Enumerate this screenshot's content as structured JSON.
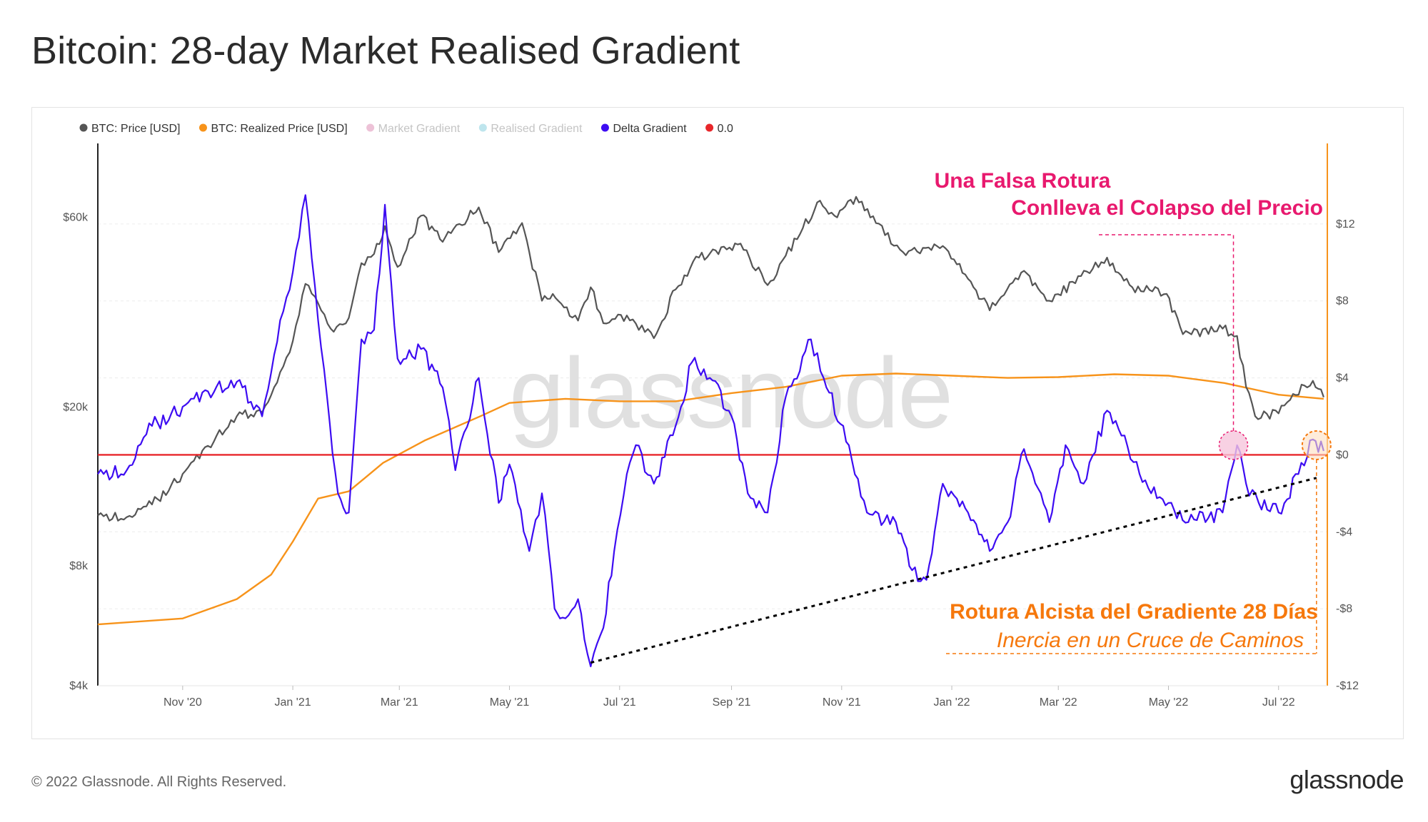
{
  "title": "Bitcoin: 28-day Market Realised Gradient",
  "footer": {
    "copyright": "© 2022 Glassnode. All Rights Reserved.",
    "logo": "glassnode"
  },
  "watermark": "glassnode",
  "colors": {
    "price": "#555555",
    "realized_price": "#f7931a",
    "market_gradient": "#d678a6",
    "realised_gradient": "#6ec6d6",
    "delta_gradient": "#3d0cf2",
    "zero_line": "#e8262a",
    "annotation_pink": "#e8196e",
    "annotation_orange": "#f6780c"
  },
  "chart_data": {
    "type": "line",
    "x_axis": {
      "ticks": [
        "Nov '20",
        "Jan '21",
        "Mar '21",
        "May '21",
        "Jul '21",
        "Sep '21",
        "Nov '21",
        "Jan '22",
        "Mar '22",
        "May '22",
        "Jul '22"
      ],
      "tick_dates": [
        "2020-11-01",
        "2021-01-01",
        "2021-03-01",
        "2021-05-01",
        "2021-07-01",
        "2021-09-01",
        "2021-11-01",
        "2022-01-01",
        "2022-03-01",
        "2022-05-01",
        "2022-07-01"
      ],
      "range": [
        "2020-09-15",
        "2022-07-28"
      ]
    },
    "y_left": {
      "scale": "log",
      "ticks": [
        4000,
        8000,
        20000,
        60000
      ],
      "tick_labels": [
        "$4k",
        "$8k",
        "$20k",
        "$60k"
      ],
      "range": [
        4000,
        90000
      ]
    },
    "y_right": {
      "scale": "linear",
      "ticks": [
        -12,
        -8,
        -4,
        0,
        4,
        8,
        12
      ],
      "tick_labels": [
        "-$12",
        "-$8",
        "-$4",
        "$0",
        "$4",
        "$8",
        "$12"
      ],
      "range": [
        -12,
        16
      ]
    },
    "legend": {
      "position": "top-left",
      "items": [
        {
          "label": "BTC: Price [USD]",
          "color": "#555555",
          "active": true
        },
        {
          "label": "BTC: Realized Price [USD]",
          "color": "#f7931a",
          "active": true
        },
        {
          "label": "Market Gradient",
          "color": "#d678a6",
          "active": false
        },
        {
          "label": "Realised Gradient",
          "color": "#6ec6d6",
          "active": false
        },
        {
          "label": "Delta Gradient",
          "color": "#3d0cf2",
          "active": true
        },
        {
          "label": "0.0",
          "color": "#e8262a",
          "active": true
        }
      ]
    },
    "series": [
      {
        "name": "BTC: Price [USD]",
        "axis": "left",
        "points": [
          [
            "2020-09-15",
            10700
          ],
          [
            "2020-10-01",
            10600
          ],
          [
            "2020-10-15",
            11400
          ],
          [
            "2020-11-01",
            13600
          ],
          [
            "2020-11-15",
            16000
          ],
          [
            "2020-12-01",
            19000
          ],
          [
            "2020-12-15",
            19400
          ],
          [
            "2020-12-25",
            24500
          ],
          [
            "2021-01-01",
            29300
          ],
          [
            "2021-01-08",
            40800
          ],
          [
            "2021-01-15",
            36500
          ],
          [
            "2021-01-22",
            31500
          ],
          [
            "2021-02-01",
            33500
          ],
          [
            "2021-02-08",
            46000
          ],
          [
            "2021-02-15",
            48500
          ],
          [
            "2021-02-21",
            57000
          ],
          [
            "2021-02-28",
            45000
          ],
          [
            "2021-03-13",
            60500
          ],
          [
            "2021-03-25",
            52000
          ],
          [
            "2021-04-14",
            63500
          ],
          [
            "2021-04-25",
            49000
          ],
          [
            "2021-05-08",
            58000
          ],
          [
            "2021-05-12",
            49000
          ],
          [
            "2021-05-19",
            37000
          ],
          [
            "2021-05-25",
            38500
          ],
          [
            "2021-06-08",
            33000
          ],
          [
            "2021-06-15",
            40000
          ],
          [
            "2021-06-22",
            32500
          ],
          [
            "2021-07-05",
            34000
          ],
          [
            "2021-07-20",
            29800
          ],
          [
            "2021-08-01",
            39500
          ],
          [
            "2021-08-14",
            47500
          ],
          [
            "2021-09-06",
            51500
          ],
          [
            "2021-09-21",
            40500
          ],
          [
            "2021-10-01",
            48000
          ],
          [
            "2021-10-20",
            66000
          ],
          [
            "2021-10-28",
            60500
          ],
          [
            "2021-11-09",
            67500
          ],
          [
            "2021-11-20",
            58000
          ],
          [
            "2021-12-05",
            49000
          ],
          [
            "2021-12-27",
            50800
          ],
          [
            "2022-01-10",
            42000
          ],
          [
            "2022-01-22",
            35000
          ],
          [
            "2022-02-10",
            44000
          ],
          [
            "2022-02-24",
            37000
          ],
          [
            "2022-03-28",
            47500
          ],
          [
            "2022-04-11",
            40000
          ],
          [
            "2022-04-30",
            38500
          ],
          [
            "2022-05-09",
            30500
          ],
          [
            "2022-05-31",
            31500
          ],
          [
            "2022-06-08",
            30200
          ],
          [
            "2022-06-13",
            22500
          ],
          [
            "2022-06-18",
            19000
          ],
          [
            "2022-07-01",
            19300
          ],
          [
            "2022-07-09",
            21600
          ],
          [
            "2022-07-20",
            23300
          ],
          [
            "2022-07-26",
            21200
          ]
        ]
      },
      {
        "name": "BTC: Realized Price [USD]",
        "axis": "left",
        "points": [
          [
            "2020-09-15",
            5700
          ],
          [
            "2020-11-01",
            5900
          ],
          [
            "2020-12-01",
            6600
          ],
          [
            "2020-12-20",
            7600
          ],
          [
            "2021-01-01",
            9200
          ],
          [
            "2021-01-15",
            11800
          ],
          [
            "2021-02-01",
            12300
          ],
          [
            "2021-02-20",
            14500
          ],
          [
            "2021-03-15",
            16500
          ],
          [
            "2021-04-15",
            19000
          ],
          [
            "2021-05-01",
            20500
          ],
          [
            "2021-06-01",
            21000
          ],
          [
            "2021-07-01",
            20700
          ],
          [
            "2021-08-01",
            20700
          ],
          [
            "2021-09-01",
            21700
          ],
          [
            "2021-10-01",
            22500
          ],
          [
            "2021-11-01",
            24000
          ],
          [
            "2021-12-01",
            24300
          ],
          [
            "2022-01-01",
            24000
          ],
          [
            "2022-02-01",
            23700
          ],
          [
            "2022-03-01",
            23800
          ],
          [
            "2022-04-01",
            24200
          ],
          [
            "2022-05-01",
            24000
          ],
          [
            "2022-06-01",
            23000
          ],
          [
            "2022-07-01",
            21500
          ],
          [
            "2022-07-26",
            21000
          ]
        ]
      },
      {
        "name": "Delta Gradient",
        "axis": "right",
        "points": [
          [
            "2020-09-15",
            -1.0
          ],
          [
            "2020-10-01",
            -0.8
          ],
          [
            "2020-10-15",
            1.5
          ],
          [
            "2020-11-01",
            2.5
          ],
          [
            "2020-11-15",
            3.3
          ],
          [
            "2020-12-01",
            3.8
          ],
          [
            "2020-12-15",
            2.0
          ],
          [
            "2020-12-25",
            7.0
          ],
          [
            "2021-01-01",
            9.5
          ],
          [
            "2021-01-08",
            13.5
          ],
          [
            "2021-01-15",
            7.0
          ],
          [
            "2021-01-20",
            3.0
          ],
          [
            "2021-01-26",
            -2.0
          ],
          [
            "2021-02-01",
            -3.0
          ],
          [
            "2021-02-08",
            6.0
          ],
          [
            "2021-02-15",
            6.5
          ],
          [
            "2021-02-21",
            13.0
          ],
          [
            "2021-02-28",
            5.0
          ],
          [
            "2021-03-13",
            5.5
          ],
          [
            "2021-03-25",
            3.5
          ],
          [
            "2021-04-01",
            -0.8
          ],
          [
            "2021-04-14",
            4.0
          ],
          [
            "2021-04-25",
            -2.5
          ],
          [
            "2021-05-01",
            -0.5
          ],
          [
            "2021-05-12",
            -5.0
          ],
          [
            "2021-05-19",
            -2.0
          ],
          [
            "2021-05-26",
            -8.0
          ],
          [
            "2021-06-01",
            -8.5
          ],
          [
            "2021-06-08",
            -7.5
          ],
          [
            "2021-06-15",
            -11.0
          ],
          [
            "2021-06-22",
            -9.0
          ],
          [
            "2021-06-28",
            -5.0
          ],
          [
            "2021-07-05",
            -1.0
          ],
          [
            "2021-07-10",
            0.5
          ],
          [
            "2021-07-20",
            -1.5
          ],
          [
            "2021-08-01",
            1.5
          ],
          [
            "2021-08-10",
            4.8
          ],
          [
            "2021-08-20",
            4.0
          ],
          [
            "2021-09-01",
            2.0
          ],
          [
            "2021-09-10",
            -2.0
          ],
          [
            "2021-09-21",
            -3.0
          ],
          [
            "2021-10-01",
            3.0
          ],
          [
            "2021-10-15",
            6.0
          ],
          [
            "2021-10-22",
            4.0
          ],
          [
            "2021-11-05",
            0.5
          ],
          [
            "2021-11-15",
            -3.0
          ],
          [
            "2021-12-01",
            -3.5
          ],
          [
            "2021-12-10",
            -6.0
          ],
          [
            "2021-12-18",
            -6.5
          ],
          [
            "2021-12-27",
            -1.5
          ],
          [
            "2022-01-10",
            -3.0
          ],
          [
            "2022-01-22",
            -5.0
          ],
          [
            "2022-02-01",
            -3.5
          ],
          [
            "2022-02-10",
            0.3
          ],
          [
            "2022-02-24",
            -3.5
          ],
          [
            "2022-03-05",
            0.5
          ],
          [
            "2022-03-15",
            -1.5
          ],
          [
            "2022-03-28",
            2.3
          ],
          [
            "2022-04-05",
            1.0
          ],
          [
            "2022-04-15",
            -1.0
          ],
          [
            "2022-05-01",
            -2.5
          ],
          [
            "2022-05-12",
            -3.5
          ],
          [
            "2022-05-31",
            -3.0
          ],
          [
            "2022-06-08",
            0.5
          ],
          [
            "2022-06-13",
            -1.5
          ],
          [
            "2022-06-20",
            -2.5
          ],
          [
            "2022-07-01",
            -3.0
          ],
          [
            "2022-07-12",
            -1.0
          ],
          [
            "2022-07-20",
            0.8
          ],
          [
            "2022-07-26",
            0.2
          ]
        ]
      },
      {
        "name": "0.0",
        "axis": "right",
        "points": [
          [
            "2020-09-15",
            0
          ],
          [
            "2022-07-28",
            0
          ]
        ]
      }
    ],
    "annotations": [
      {
        "lines": [
          "Una Falsa Rotura",
          "Conlleva el Colapso del Precio"
        ],
        "color": "#e8196e"
      },
      {
        "lines": [
          "Rotura Alcista del Gradiente 28 Días",
          "Inercia en un Cruce de Caminos"
        ],
        "color": "#f6780c"
      }
    ],
    "trendline": {
      "from": [
        "2021-06-15",
        -10.8
      ],
      "to": [
        "2022-07-22",
        -1.2
      ],
      "style": "dotted",
      "color": "#000000"
    },
    "markers": [
      {
        "date": "2022-06-06",
        "value": 0.5,
        "color": "#e8196e",
        "style": "circle"
      },
      {
        "date": "2022-07-22",
        "value": 0.5,
        "color": "#f6780c",
        "style": "circle"
      }
    ]
  }
}
